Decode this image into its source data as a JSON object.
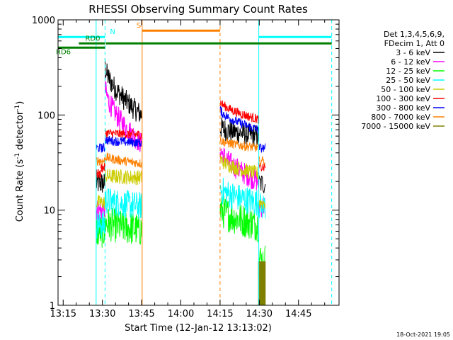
{
  "chart_data": {
    "type": "line",
    "title": "RHESSI Observing Summary Count Rates",
    "xlabel": "Start Time (12-Jan-12 13:13:02)",
    "ylabel_main": "Count Rate (s",
    "ylabel_sup1": "-1",
    "ylabel_mid": " detector",
    "ylabel_sup2": "-1",
    "ylabel_end": ")",
    "timestamp": "18-Oct-2021 19:05",
    "x_unit": "minutes since 13:00",
    "xlim": [
      13.03,
      120.5
    ],
    "ylim": [
      1,
      1000
    ],
    "yscale": "log",
    "x_ticks": [
      {
        "v": 15,
        "label": "13:15"
      },
      {
        "v": 30,
        "label": "13:30"
      },
      {
        "v": 45,
        "label": "13:45"
      },
      {
        "v": 60,
        "label": "14:00"
      },
      {
        "v": 75,
        "label": "14:15"
      },
      {
        "v": 90,
        "label": "14:30"
      },
      {
        "v": 105,
        "label": "14:45"
      }
    ],
    "y_ticks": [
      {
        "v": 1,
        "label": "1"
      },
      {
        "v": 10,
        "label": "10"
      },
      {
        "v": 100,
        "label": "100"
      },
      {
        "v": 1000,
        "label": "1000"
      }
    ],
    "legend": {
      "position": "right",
      "header": [
        "Det 1,3,4,5,6,9,",
        "FDecim 1, Att 0"
      ],
      "entries": [
        {
          "label": "3 - 6 keV",
          "color": "#000000"
        },
        {
          "label": "6 - 12 keV",
          "color": "#ff00ff"
        },
        {
          "label": "12 - 25 keV",
          "color": "#00ff00"
        },
        {
          "label": "25 - 50 keV",
          "color": "#00ffff"
        },
        {
          "label": "50 - 100 keV",
          "color": "#cccc00"
        },
        {
          "label": "100 - 300 keV",
          "color": "#ff0000"
        },
        {
          "label": "300 - 800 keV",
          "color": "#0000ff"
        },
        {
          "label": "800 - 7000 keV",
          "color": "#ff8000"
        },
        {
          "label": "7000 - 15000 keV",
          "color": "#808000"
        }
      ]
    },
    "segments": [
      {
        "t0": 27.6,
        "t1": 29.4,
        "type": "flat"
      },
      {
        "t0": 29.4,
        "t1": 31.0,
        "type": "flat"
      },
      {
        "t0": 31.0,
        "t1": 45.0,
        "type": "decay"
      },
      {
        "t0": 75.0,
        "t1": 89.7,
        "type": "decay"
      },
      {
        "t0": 89.7,
        "t1": 92.3,
        "type": "flat"
      }
    ],
    "series": [
      {
        "name": "3 - 6 keV",
        "color": "#000000",
        "noise": 0.12,
        "levels": [
          [
            19,
            19
          ],
          [
            19,
            19
          ],
          [
            330,
            100
          ],
          [
            75,
            60
          ],
          [
            19,
            19
          ]
        ]
      },
      {
        "name": "6 - 12 keV",
        "color": "#ff00ff",
        "noise": 0.12,
        "levels": [
          [
            10,
            10
          ],
          [
            10,
            10
          ],
          [
            200,
            50
          ],
          [
            45,
            20
          ],
          [
            11,
            11
          ]
        ]
      },
      {
        "name": "12 - 25 keV",
        "color": "#00ff00",
        "noise": 0.18,
        "levels": [
          [
            6,
            6
          ],
          [
            6,
            6
          ],
          [
            7.5,
            6.2
          ],
          [
            10.5,
            7
          ],
          [
            3,
            3
          ]
        ]
      },
      {
        "name": "25 - 50 keV",
        "color": "#00ffff",
        "noise": 0.15,
        "levels": [
          [
            7,
            7
          ],
          [
            7,
            7
          ],
          [
            13,
            11
          ],
          [
            17,
            12
          ],
          [
            11,
            11
          ]
        ]
      },
      {
        "name": "50 - 100 keV",
        "color": "#cccc00",
        "noise": 0.08,
        "levels": [
          [
            12,
            12
          ],
          [
            12,
            12
          ],
          [
            23,
            22
          ],
          [
            35,
            24
          ],
          [
            12,
            12
          ]
        ]
      },
      {
        "name": "100 - 300 keV",
        "color": "#ff0000",
        "noise": 0.05,
        "levels": [
          [
            24,
            24
          ],
          [
            28,
            28
          ],
          [
            65,
            62
          ],
          [
            140,
            90
          ],
          [
            28,
            28
          ]
        ]
      },
      {
        "name": "300 - 800 keV",
        "color": "#0000ff",
        "noise": 0.05,
        "levels": [
          [
            45,
            45
          ],
          [
            45,
            45
          ],
          [
            55,
            51
          ],
          [
            115,
            70
          ],
          [
            45,
            45
          ]
        ]
      },
      {
        "name": "800 - 7000 keV",
        "color": "#ff8000",
        "noise": 0.05,
        "levels": [
          [
            33,
            33
          ],
          [
            33,
            33
          ],
          [
            37,
            31
          ],
          [
            55,
            45
          ],
          [
            33,
            33
          ]
        ]
      },
      {
        "name": "7000 - 15000 keV",
        "color": "#808000",
        "noise": 0.0,
        "levels": [
          [
            null,
            null
          ],
          [
            null,
            null
          ],
          [
            null,
            null
          ],
          [
            null,
            null
          ],
          [
            2.5,
            2.5
          ]
        ]
      }
    ],
    "vlines": [
      {
        "x": 27.6,
        "color": "#00ffff",
        "style": "solid"
      },
      {
        "x": 31.0,
        "color": "#00ffff",
        "style": "dash"
      },
      {
        "x": 45.2,
        "color": "#ff8000",
        "style": "solid"
      },
      {
        "x": 75.0,
        "color": "#ff8000",
        "style": "dash"
      },
      {
        "x": 89.8,
        "color": "#00ffff",
        "style": "solid"
      },
      {
        "x": 117.7,
        "color": "#00ffff",
        "style": "dash"
      }
    ],
    "bars": [
      {
        "label": "",
        "x0": 13.03,
        "x1": 31.0,
        "y": 660,
        "color": "#00ffff"
      },
      {
        "label": "",
        "x0": 89.8,
        "x1": 117.7,
        "y": 660,
        "color": "#00ffff"
      },
      {
        "label": "N",
        "x0": 31.0,
        "x1": 31.0,
        "y": 660,
        "color": "#00ffff"
      },
      {
        "label": "S",
        "x0": 45.2,
        "x1": 75.0,
        "y": 770,
        "color": "#ff8000"
      },
      {
        "label": "RD0",
        "x0": 21.0,
        "x1": 31.0,
        "y": 565,
        "color": "#008000"
      },
      {
        "label": "RD6",
        "x0": 13.03,
        "x1": 31.0,
        "y": 510,
        "color": "#008000"
      },
      {
        "label": "",
        "x0": 31.3,
        "x1": 117.7,
        "y": 565,
        "color": "#008000"
      }
    ]
  }
}
